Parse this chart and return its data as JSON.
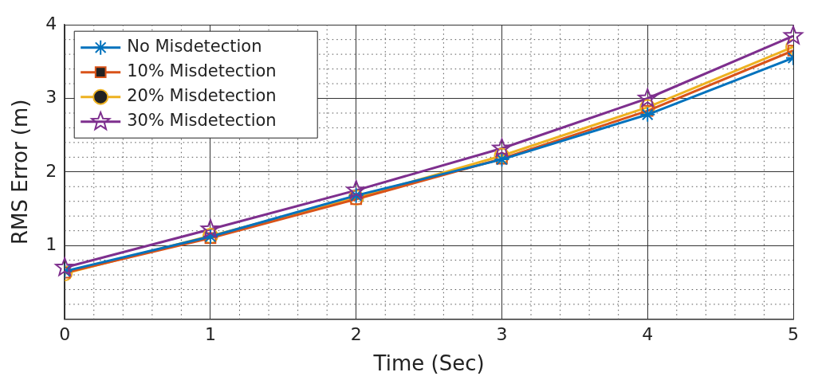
{
  "chart_data": {
    "type": "line",
    "xlabel": "Time (Sec)",
    "ylabel": "RMS Error (m)",
    "x": [
      0,
      1,
      2,
      3,
      4,
      5
    ],
    "xlim": [
      0,
      5
    ],
    "xticks": [
      0,
      1,
      2,
      3,
      4,
      5
    ],
    "ylim": [
      0,
      4
    ],
    "yticks": [
      1,
      2,
      3,
      4
    ],
    "grid": true,
    "legend": "top left",
    "line_style": "solid",
    "series": [
      {
        "name": "No Misdetection",
        "color": "#0072bd",
        "marker": "cross",
        "values": [
          0.65,
          1.12,
          1.68,
          2.17,
          2.78,
          3.55
        ]
      },
      {
        "name": "10% Misdetection",
        "color": "#d95319",
        "marker": "square",
        "values": [
          0.63,
          1.1,
          1.63,
          2.18,
          2.83,
          3.65
        ]
      },
      {
        "name": "20% Misdetection",
        "color": "#edb120",
        "marker": "circle",
        "values": [
          0.62,
          1.13,
          1.65,
          2.22,
          2.88,
          3.7
        ]
      },
      {
        "name": "30% Misdetection",
        "color": "#7e2f8e",
        "marker": "star",
        "values": [
          0.7,
          1.22,
          1.75,
          2.32,
          3.0,
          3.85
        ]
      }
    ]
  }
}
